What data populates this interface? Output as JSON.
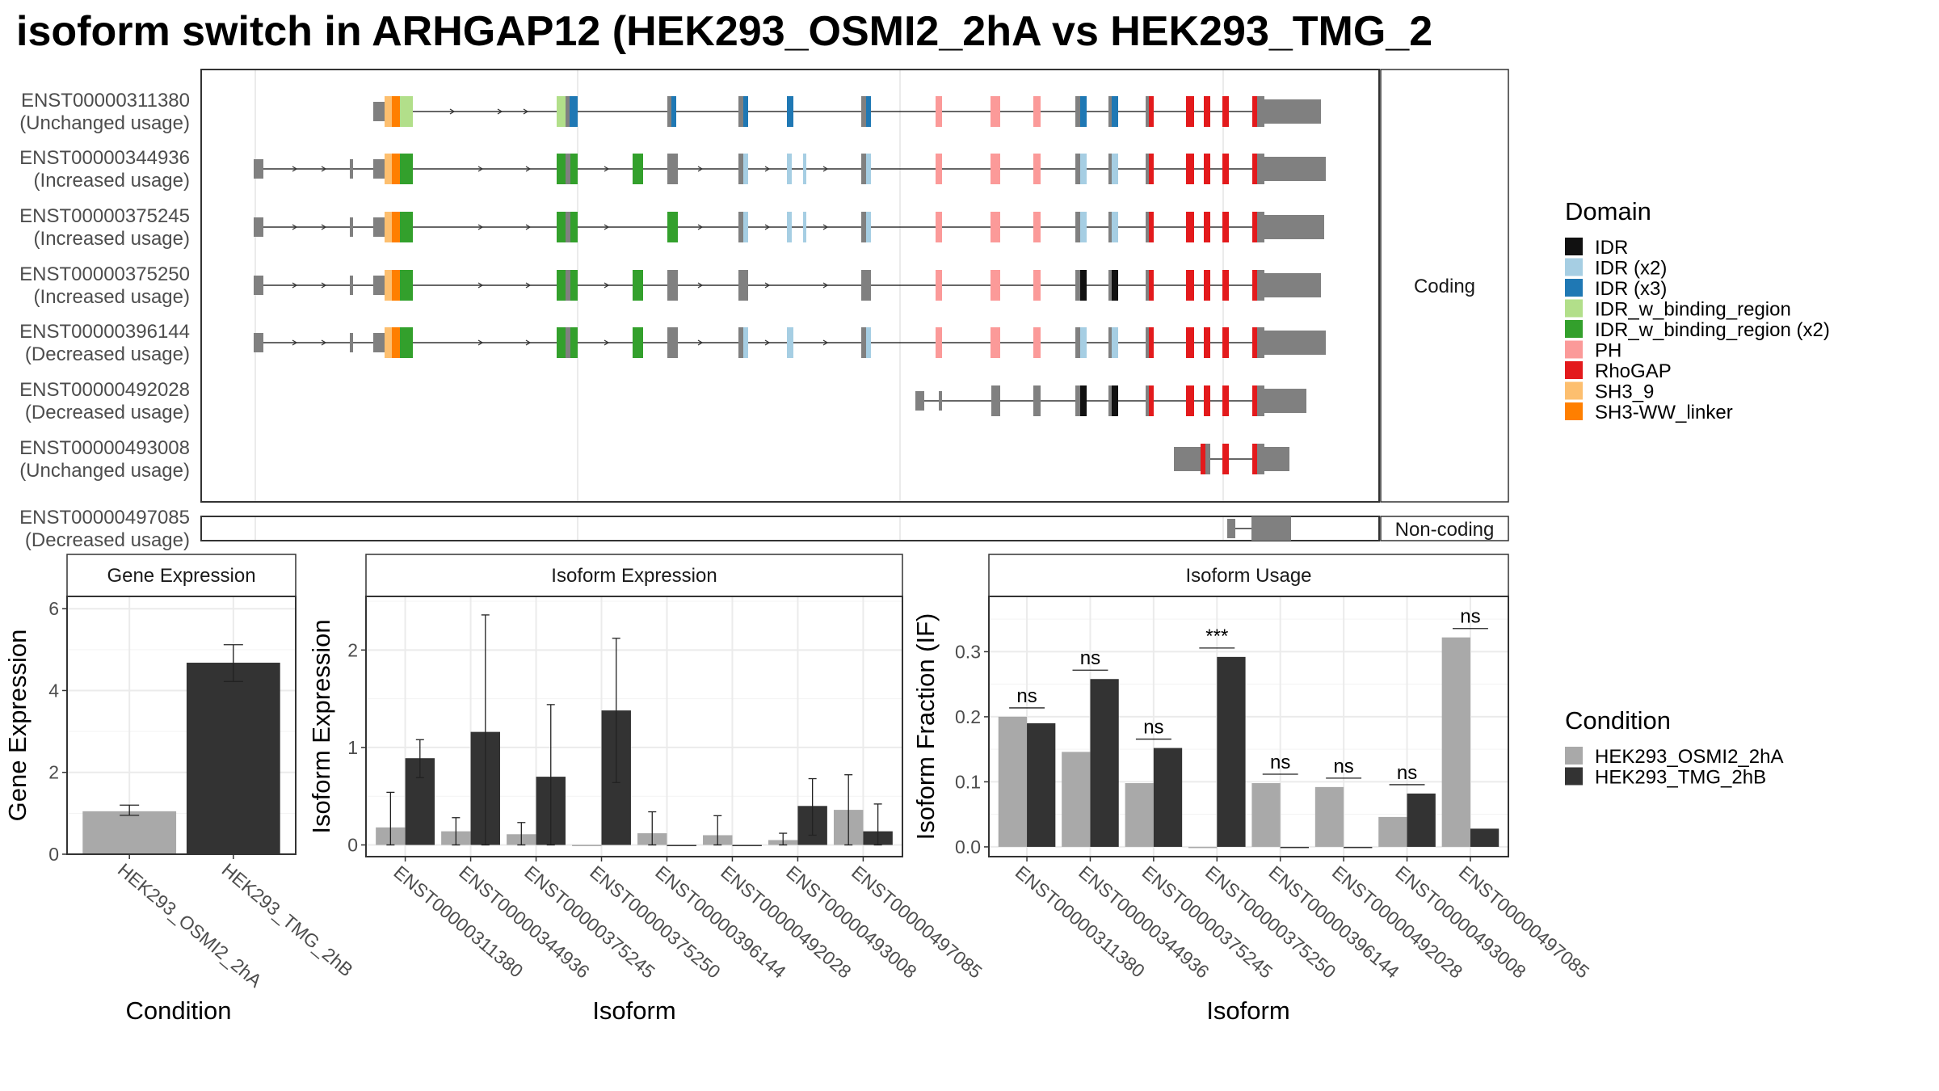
{
  "title": "isoform switch in ARHGAP12 (HEK293_OSMI2_2hA vs HEK293_TMG_2",
  "structure": {
    "coding_label": "Coding",
    "noncoding_label": "Non-coding",
    "isoforms": [
      {
        "id": "ENST00000311380",
        "usage": "(Unchanged usage)"
      },
      {
        "id": "ENST00000344936",
        "usage": "(Increased usage)"
      },
      {
        "id": "ENST00000375245",
        "usage": "(Increased usage)"
      },
      {
        "id": "ENST00000375250",
        "usage": "(Increased usage)"
      },
      {
        "id": "ENST00000396144",
        "usage": "(Decreased usage)"
      },
      {
        "id": "ENST00000492028",
        "usage": "(Decreased usage)"
      },
      {
        "id": "ENST00000493008",
        "usage": "(Unchanged usage)"
      },
      {
        "id": "ENST00000497085",
        "usage": "(Decreased usage)"
      }
    ]
  },
  "domain_legend": {
    "title": "Domain",
    "items": [
      {
        "label": "IDR",
        "color": "#111111"
      },
      {
        "label": "IDR (x2)",
        "color": "#a6cee3"
      },
      {
        "label": "IDR (x3)",
        "color": "#1f78b4"
      },
      {
        "label": "IDR_w_binding_region",
        "color": "#b2df8a"
      },
      {
        "label": "IDR_w_binding_region (x2)",
        "color": "#33a02c"
      },
      {
        "label": "PH",
        "color": "#fb9a99"
      },
      {
        "label": "RhoGAP",
        "color": "#e31a1c"
      },
      {
        "label": "SH3_9",
        "color": "#fdbf6f"
      },
      {
        "label": "SH3-WW_linker",
        "color": "#ff7f00"
      }
    ]
  },
  "condition_legend": {
    "title": "Condition",
    "items": [
      {
        "label": "HEK293_OSMI2_2hA",
        "color": "#a9a9a9"
      },
      {
        "label": "HEK293_TMG_2hB",
        "color": "#333333"
      }
    ]
  },
  "chart_data": [
    {
      "type": "bar",
      "title": "Gene Expression",
      "xlabel": "Condition",
      "ylabel": "Gene Expression",
      "ylim": [
        0,
        6.3
      ],
      "yticks": [
        0,
        2,
        4,
        6
      ],
      "categories": [
        "HEK293_OSMI2_2hA",
        "HEK293_TMG_2hB"
      ],
      "values": [
        1.05,
        4.68
      ],
      "error": [
        [
          0.95,
          1.2
        ],
        [
          4.22,
          5.12
        ]
      ]
    },
    {
      "type": "bar",
      "title": "Isoform Expression",
      "xlabel": "Isoform",
      "ylabel": "Isoform Expression",
      "ylim": [
        -0.12,
        2.55
      ],
      "yticks": [
        0,
        1,
        2
      ],
      "categories": [
        "ENST00000311380",
        "ENST00000344936",
        "ENST00000375245",
        "ENST00000375250",
        "ENST00000396144",
        "ENST00000492028",
        "ENST00000493008",
        "ENST00000497085"
      ],
      "series": [
        {
          "name": "HEK293_OSMI2_2hA",
          "values": [
            0.18,
            0.14,
            0.11,
            0.0,
            0.12,
            0.1,
            0.05,
            0.36
          ],
          "error": [
            [
              0.0,
              0.54
            ],
            [
              0.0,
              0.28
            ],
            [
              0.0,
              0.23
            ],
            null,
            [
              0.0,
              0.34
            ],
            [
              0.0,
              0.3
            ],
            [
              0.0,
              0.12
            ],
            [
              0.0,
              0.72
            ]
          ]
        },
        {
          "name": "HEK293_TMG_2hB",
          "values": [
            0.89,
            1.16,
            0.7,
            1.38,
            0.0,
            0.0,
            0.4,
            0.14
          ],
          "error": [
            [
              0.69,
              1.08
            ],
            [
              0.0,
              2.36
            ],
            [
              0.0,
              1.44
            ],
            [
              0.64,
              2.12
            ],
            null,
            null,
            [
              0.1,
              0.68
            ],
            [
              0.0,
              0.42
            ]
          ]
        }
      ]
    },
    {
      "type": "bar",
      "title": "Isoform Usage",
      "xlabel": "Isoform",
      "ylabel": "Isoform Fraction (IF)",
      "ylim": [
        -0.015,
        0.385
      ],
      "yticks": [
        0.0,
        0.1,
        0.2,
        0.3
      ],
      "categories": [
        "ENST00000311380",
        "ENST00000344936",
        "ENST00000375245",
        "ENST00000375250",
        "ENST00000396144",
        "ENST00000492028",
        "ENST00000493008",
        "ENST00000497085"
      ],
      "series": [
        {
          "name": "HEK293_OSMI2_2hA",
          "values": [
            0.2,
            0.146,
            0.098,
            0.0,
            0.098,
            0.092,
            0.046,
            0.322
          ]
        },
        {
          "name": "HEK293_TMG_2hB",
          "values": [
            0.19,
            0.258,
            0.152,
            0.292,
            0.0,
            0.0,
            0.082,
            0.028
          ]
        }
      ],
      "significance": [
        "ns",
        "ns",
        "ns",
        "***",
        "ns",
        "ns",
        "ns",
        "ns"
      ]
    }
  ]
}
